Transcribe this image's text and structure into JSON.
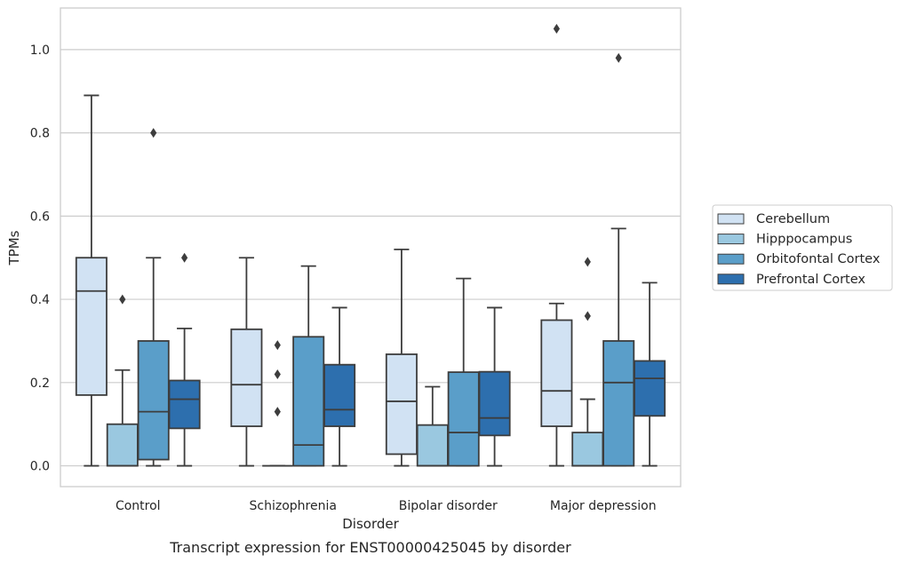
{
  "chart_data": {
    "type": "boxplot",
    "caption": "Transcript expression for ENST00000425045 by disorder",
    "xlabel": "Disorder",
    "ylabel": "TPMs",
    "ylim": [
      -0.05,
      1.1
    ],
    "yticks": [
      0.0,
      0.2,
      0.4,
      0.6,
      0.8,
      1.0
    ],
    "ytick_labels": [
      "0.0",
      "0.2",
      "0.4",
      "0.6",
      "0.8",
      "1.0"
    ],
    "grid": "horizontal",
    "legend_position": "right",
    "categories": [
      "Control",
      "Schizophrenia",
      "Bipolar disorder",
      "Major depression"
    ],
    "series": [
      {
        "name": "Cerebellum",
        "color": "#d1e2f3",
        "boxes": [
          {
            "whislo": 0.0,
            "q1": 0.17,
            "med": 0.42,
            "q3": 0.5,
            "whishi": 0.89,
            "fliers": []
          },
          {
            "whislo": 0.0,
            "q1": 0.095,
            "med": 0.195,
            "q3": 0.328,
            "whishi": 0.5,
            "fliers": []
          },
          {
            "whislo": 0.0,
            "q1": 0.028,
            "med": 0.155,
            "q3": 0.268,
            "whishi": 0.52,
            "fliers": []
          },
          {
            "whislo": 0.0,
            "q1": 0.095,
            "med": 0.18,
            "q3": 0.35,
            "whishi": 0.39,
            "fliers": [
              1.05
            ]
          }
        ]
      },
      {
        "name": "Hipppocampus",
        "color": "#9ac8e0",
        "boxes": [
          {
            "whislo": 0.0,
            "q1": 0.0,
            "med": 0.0,
            "q3": 0.1,
            "whishi": 0.23,
            "fliers": [
              0.4
            ]
          },
          {
            "whislo": 0.0,
            "q1": 0.0,
            "med": 0.0,
            "q3": 0.0,
            "whishi": 0.0,
            "fliers": [
              0.13,
              0.22,
              0.29
            ]
          },
          {
            "whislo": 0.0,
            "q1": 0.0,
            "med": 0.0,
            "q3": 0.098,
            "whishi": 0.19,
            "fliers": []
          },
          {
            "whislo": 0.0,
            "q1": 0.0,
            "med": 0.0,
            "q3": 0.08,
            "whishi": 0.16,
            "fliers": [
              0.36,
              0.49
            ]
          }
        ]
      },
      {
        "name": "Orbitofontal Cortex",
        "color": "#5a9ec9",
        "boxes": [
          {
            "whislo": 0.0,
            "q1": 0.015,
            "med": 0.13,
            "q3": 0.3,
            "whishi": 0.5,
            "fliers": [
              0.8
            ]
          },
          {
            "whislo": 0.0,
            "q1": 0.0,
            "med": 0.05,
            "q3": 0.31,
            "whishi": 0.48,
            "fliers": []
          },
          {
            "whislo": 0.0,
            "q1": 0.0,
            "med": 0.08,
            "q3": 0.225,
            "whishi": 0.45,
            "fliers": []
          },
          {
            "whislo": 0.0,
            "q1": 0.0,
            "med": 0.2,
            "q3": 0.3,
            "whishi": 0.57,
            "fliers": [
              0.98
            ]
          }
        ]
      },
      {
        "name": "Prefrontal Cortex",
        "color": "#2d6fae",
        "boxes": [
          {
            "whislo": 0.0,
            "q1": 0.09,
            "med": 0.16,
            "q3": 0.205,
            "whishi": 0.33,
            "fliers": [
              0.5
            ]
          },
          {
            "whislo": 0.0,
            "q1": 0.095,
            "med": 0.135,
            "q3": 0.243,
            "whishi": 0.38,
            "fliers": []
          },
          {
            "whislo": 0.0,
            "q1": 0.073,
            "med": 0.115,
            "q3": 0.226,
            "whishi": 0.38,
            "fliers": []
          },
          {
            "whislo": 0.0,
            "q1": 0.12,
            "med": 0.21,
            "q3": 0.252,
            "whishi": 0.44,
            "fliers": []
          }
        ]
      }
    ]
  }
}
